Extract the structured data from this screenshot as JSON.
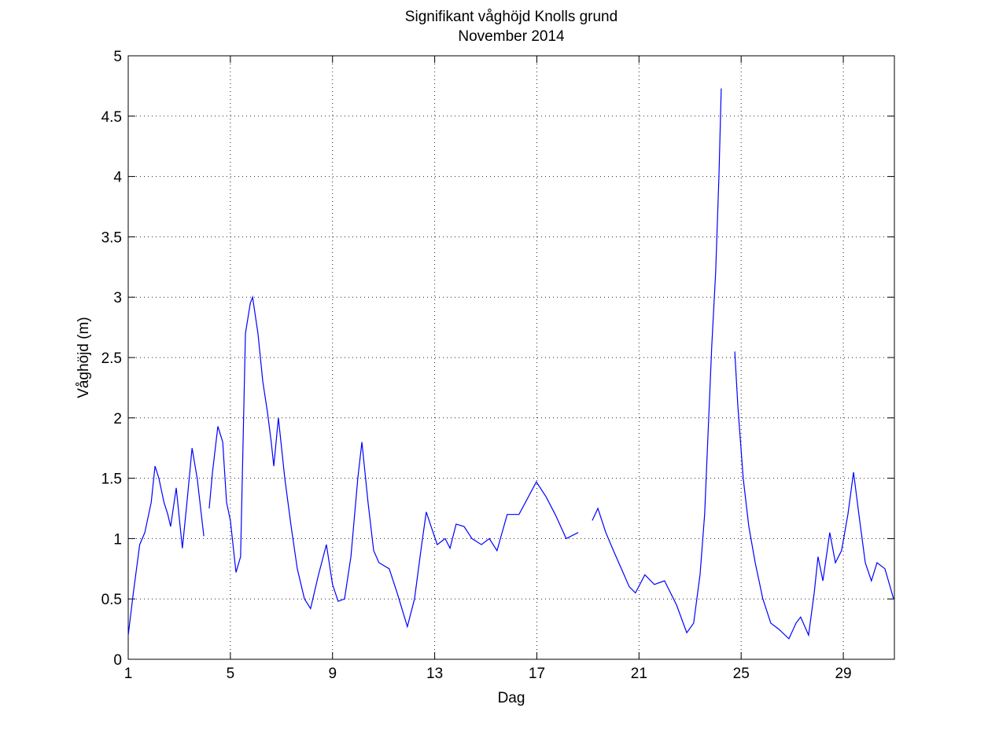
{
  "chart_data": {
    "type": "line",
    "title": "Signifikant våghöjd Knolls grund",
    "subtitle": "November 2014",
    "x_label": "Dag",
    "y_label": "Våghöjd (m)",
    "xlim": [
      1,
      31
    ],
    "xticks": [
      1,
      5,
      9,
      13,
      17,
      21,
      25,
      29
    ],
    "ylim": [
      0,
      5
    ],
    "yticks": [
      0,
      0.5,
      1,
      1.5,
      2,
      2.5,
      3,
      3.5,
      4,
      4.5,
      5
    ],
    "grid": true,
    "x": [
      1.0,
      1.2,
      1.45,
      1.65,
      1.9,
      2.05,
      2.2,
      2.4,
      2.55,
      2.66,
      2.88,
      3.12,
      3.3,
      3.5,
      3.7,
      3.96,
      4.05,
      4.17,
      4.3,
      4.51,
      4.7,
      4.85,
      5.0,
      5.22,
      5.4,
      5.59,
      5.78,
      5.87,
      6.08,
      6.27,
      6.45,
      6.6,
      6.7,
      6.88,
      7.13,
      7.38,
      7.62,
      7.9,
      8.14,
      8.45,
      8.76,
      9.0,
      9.22,
      9.47,
      9.72,
      9.99,
      10.15,
      10.39,
      10.61,
      10.82,
      11.22,
      11.53,
      11.93,
      12.21,
      12.49,
      12.67,
      12.86,
      13.1,
      13.41,
      13.6,
      13.84,
      14.15,
      14.46,
      14.83,
      15.14,
      15.44,
      15.84,
      16.3,
      16.68,
      16.98,
      17.35,
      17.72,
      18.15,
      18.62,
      18.9,
      19.17,
      19.39,
      19.7,
      20.0,
      20.31,
      20.62,
      20.86,
      21.23,
      21.6,
      22.0,
      22.47,
      22.87,
      23.14,
      23.39,
      23.57,
      23.85,
      24.0,
      24.13,
      24.22,
      24.5,
      24.75,
      24.87,
      25.08,
      25.3,
      25.55,
      25.85,
      26.16,
      26.47,
      26.87,
      27.15,
      27.33,
      27.64,
      27.86,
      28.01,
      28.2,
      28.47,
      28.69,
      28.93,
      29.18,
      29.4,
      29.61,
      29.86,
      30.1,
      30.32,
      30.63,
      30.97
    ],
    "series": [
      {
        "name": "Signifikant våghöjd",
        "color": "#0000ff",
        "values": [
          0.2,
          0.55,
          0.95,
          1.05,
          1.3,
          1.6,
          1.5,
          1.3,
          1.2,
          1.1,
          1.42,
          0.92,
          1.3,
          1.75,
          1.5,
          1.02,
          null,
          1.25,
          1.55,
          1.93,
          1.8,
          1.3,
          1.15,
          0.72,
          0.85,
          2.7,
          2.95,
          3.0,
          2.7,
          2.3,
          2.05,
          1.8,
          1.6,
          2.0,
          1.5,
          1.1,
          0.75,
          0.5,
          0.42,
          0.7,
          0.95,
          0.62,
          0.48,
          0.5,
          0.85,
          1.5,
          1.8,
          1.3,
          0.9,
          0.8,
          0.75,
          0.55,
          0.27,
          0.5,
          0.95,
          1.22,
          1.1,
          0.95,
          1.0,
          0.92,
          1.12,
          1.1,
          1.0,
          0.95,
          1.0,
          0.9,
          1.2,
          1.2,
          1.35,
          1.47,
          1.35,
          1.2,
          1.0,
          1.05,
          null,
          1.15,
          1.25,
          1.05,
          0.9,
          0.75,
          0.6,
          0.55,
          0.7,
          0.62,
          0.65,
          0.45,
          0.22,
          0.3,
          0.7,
          1.2,
          2.6,
          3.2,
          4.0,
          4.73,
          null,
          2.55,
          2.1,
          1.5,
          1.1,
          0.8,
          0.5,
          0.3,
          0.25,
          0.17,
          0.3,
          0.35,
          0.2,
          0.55,
          0.85,
          0.65,
          1.05,
          0.8,
          0.9,
          1.2,
          1.55,
          1.2,
          0.8,
          0.65,
          0.8,
          0.75,
          0.5
        ]
      }
    ]
  }
}
